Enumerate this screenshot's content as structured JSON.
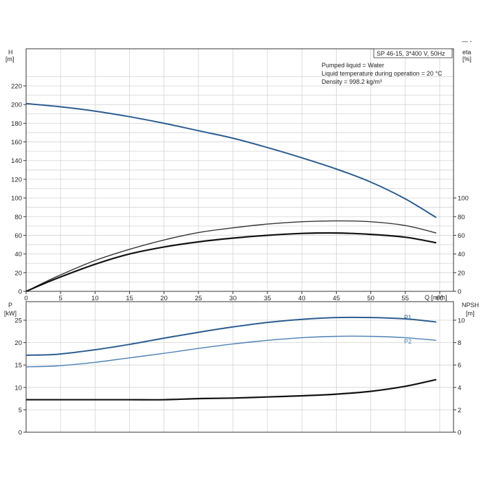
{
  "chart_data": {
    "type": "line",
    "title_box": "SP 46-15, 3*400 V, 50Hz",
    "info_lines": [
      "Pumped liquid = Water",
      "Liquid temperature during operation = 20 °C",
      "Density = 998.2 kg/m³"
    ],
    "corner_mark": "— -",
    "colors": {
      "blue": "#2a5b8e",
      "light_blue": "#4a7fb5",
      "black": "#111111",
      "grid": "#d4d4d4"
    },
    "x_axis": {
      "label": "Q [m³/h]",
      "ticks": [
        "0",
        "5",
        "10",
        "15",
        "20",
        "25",
        "30",
        "35",
        "40",
        "45",
        "50",
        "55",
        "60"
      ],
      "range": [
        0,
        62
      ]
    },
    "top_panel": {
      "left_axis": {
        "label_line1": "H",
        "label_line2": "[m]",
        "ticks": [
          "0",
          "20",
          "40",
          "60",
          "80",
          "100",
          "120",
          "140",
          "160",
          "180",
          "200",
          "220"
        ],
        "range": [
          0,
          220
        ]
      },
      "right_axis": {
        "label_line1": "eta",
        "label_line2": "[%]",
        "ticks": [
          "0",
          "20",
          "40",
          "60",
          "80",
          "100"
        ],
        "range": [
          0,
          220
        ]
      },
      "series": [
        {
          "id": "H",
          "color": "blue",
          "width": 2,
          "x": [
            0,
            4.5,
            10,
            15,
            20,
            25,
            30,
            35,
            40,
            45,
            50,
            55,
            59.5
          ],
          "y": [
            201,
            198,
            193,
            187,
            180,
            172,
            164,
            154,
            143,
            131,
            117,
            99,
            79
          ]
        },
        {
          "id": "eta_pump",
          "color": "dark",
          "width": 1.4,
          "x": [
            0,
            4.5,
            10,
            15,
            20,
            25,
            30,
            35,
            40,
            45,
            50,
            55,
            59.5
          ],
          "y": [
            0,
            16,
            33,
            45,
            55,
            63,
            68,
            72,
            74.5,
            75.5,
            74.5,
            70.5,
            62.5
          ]
        },
        {
          "id": "eta_total",
          "color": "black",
          "width": 2.2,
          "x": [
            0,
            4.5,
            10,
            15,
            20,
            25,
            30,
            35,
            40,
            45,
            50,
            55,
            59.5
          ],
          "y": [
            0,
            14,
            29,
            40,
            47.5,
            53,
            57,
            60,
            62,
            62.5,
            61,
            58,
            52
          ]
        }
      ]
    },
    "bottom_panel": {
      "left_axis": {
        "label_line1": "P",
        "label_line2": "[kW]",
        "ticks": [
          "0",
          "5",
          "10",
          "15",
          "20",
          "25"
        ],
        "range": [
          0,
          30
        ]
      },
      "right_axis": {
        "label_line1": "NPSH",
        "label_line2": "[m]",
        "ticks": [
          "0",
          "2",
          "4",
          "6",
          "8",
          "10"
        ],
        "range": [
          0,
          12
        ]
      },
      "series": [
        {
          "id": "P1",
          "label": "P1",
          "color": "blue",
          "width": 2,
          "x": [
            0,
            4.5,
            10,
            15,
            20,
            25,
            30,
            35,
            40,
            45,
            50,
            55,
            59.5
          ],
          "y": [
            17.2,
            17.4,
            18.4,
            19.6,
            21.0,
            22.3,
            23.5,
            24.5,
            25.2,
            25.6,
            25.6,
            25.3,
            24.6
          ]
        },
        {
          "id": "P2",
          "label": "P2",
          "color": "light_blue",
          "width": 1.4,
          "x": [
            0,
            4.5,
            10,
            15,
            20,
            25,
            30,
            35,
            40,
            45,
            50,
            55,
            59.5
          ],
          "y": [
            14.6,
            14.8,
            15.6,
            16.6,
            17.6,
            18.7,
            19.7,
            20.5,
            21.1,
            21.4,
            21.4,
            21.1,
            20.5
          ]
        },
        {
          "id": "NPSH",
          "color": "black",
          "width": 2.2,
          "axis": "right",
          "x": [
            0,
            4.5,
            10,
            15,
            20,
            25,
            30,
            35,
            40,
            45,
            50,
            55,
            59.5
          ],
          "y": [
            2.9,
            2.9,
            2.9,
            2.9,
            2.9,
            3.0,
            3.05,
            3.15,
            3.25,
            3.4,
            3.65,
            4.1,
            4.7
          ]
        }
      ]
    }
  }
}
